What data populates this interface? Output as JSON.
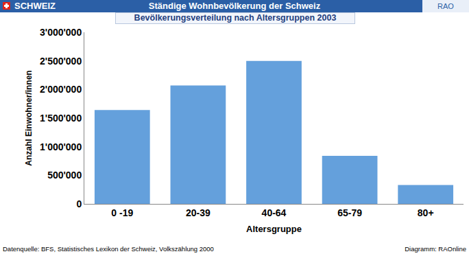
{
  "chart_data": {
    "type": "bar",
    "header": {
      "left": "SCHWEIZ",
      "right": "RAO"
    },
    "title": "Ständige Wohnbevölkerung der Schweiz",
    "subtitle": "Bevölkerungsverteilung nach Altersgruppen 2003",
    "xlabel": "Altersgruppe",
    "ylabel": "Anzahl Einwohner/innen",
    "footer": {
      "left": "Datenquelle: BFS, Statistisches Lexikon der Schweiz, Volkszählung 2000",
      "right": "Diagramm: RAOnline"
    },
    "categories": [
      "0 -19",
      "20-39",
      "40-64",
      "65-79",
      "80+"
    ],
    "values": [
      1640000,
      2070000,
      2500000,
      840000,
      330000
    ],
    "color": "#64a0dc",
    "ylim": [
      0,
      3000000
    ],
    "yticks": [
      0,
      {
        "value": 500000,
        "label": "500'000"
      },
      {
        "value": 1000000,
        "label": "1'000'000"
      },
      {
        "value": 1500000,
        "label": "1'500'000"
      },
      {
        "value": 2000000,
        "label": "2'000'000"
      },
      {
        "value": 2500000,
        "label": "2'500'000"
      },
      {
        "value": 3000000,
        "label": "3'000'000"
      }
    ],
    "grid": false
  }
}
